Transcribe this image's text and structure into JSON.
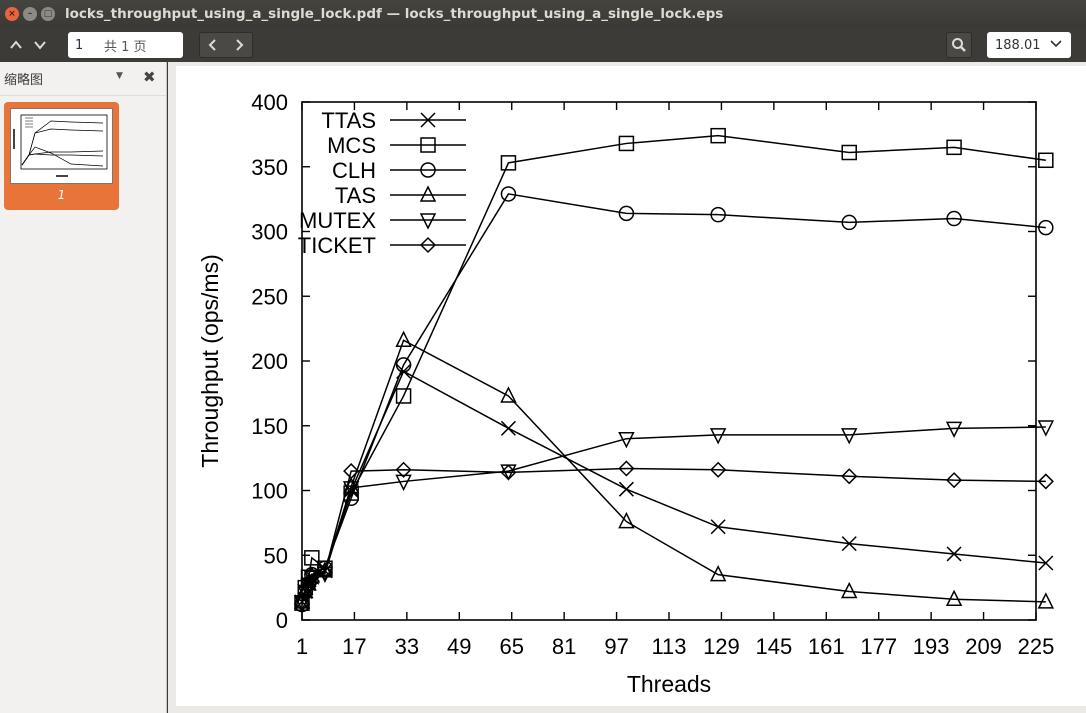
{
  "window": {
    "title": "locks_throughput_using_a_single_lock.pdf — locks_throughput_using_a_single_lock.eps",
    "close_glyph": "×",
    "min_glyph": "–",
    "max_glyph": "□"
  },
  "toolbar": {
    "page_current": "1",
    "page_total": "共 1 页",
    "zoom": "188.01",
    "up_icon": "chevron-up-icon",
    "down_icon": "chevron-down-icon",
    "prev_icon": "chevron-left-icon",
    "next_icon": "chevron-right-icon",
    "search_icon": "search-icon"
  },
  "sidebar": {
    "title": "缩略图",
    "thumbnails": [
      {
        "label": "1"
      }
    ]
  },
  "chart_data": {
    "type": "line",
    "xlabel": "Threads",
    "ylabel": "Throughput (ops/ms)",
    "xticks": [
      "1",
      "17",
      "33",
      "49",
      "65",
      "81",
      "97",
      "113",
      "129",
      "145",
      "161",
      "177",
      "193",
      "209",
      "225"
    ],
    "xlim": [
      1,
      225
    ],
    "yticks": [
      "0",
      "50",
      "100",
      "150",
      "200",
      "250",
      "300",
      "350",
      "400"
    ],
    "ylim": [
      0,
      400
    ],
    "legend_position": "top-left",
    "series": [
      {
        "name": "TTAS",
        "marker": "x",
        "x": [
          1,
          2,
          3,
          4,
          8,
          16,
          32,
          64,
          100,
          128,
          168,
          200,
          228
        ],
        "y": [
          14,
          22,
          28,
          33,
          38,
          100,
          192,
          148,
          101,
          72,
          59,
          51,
          44
        ]
      },
      {
        "name": "MCS",
        "marker": "square",
        "x": [
          1,
          2,
          3,
          4,
          8,
          16,
          32,
          64,
          100,
          128,
          168,
          200,
          228
        ],
        "y": [
          13,
          25,
          33,
          48,
          40,
          98,
          173,
          353,
          368,
          374,
          361,
          365,
          355
        ]
      },
      {
        "name": "CLH",
        "marker": "circle",
        "x": [
          1,
          2,
          3,
          4,
          8,
          16,
          32,
          64,
          100,
          128,
          168,
          200,
          228
        ],
        "y": [
          12,
          22,
          28,
          35,
          40,
          94,
          197,
          329,
          314,
          313,
          307,
          310,
          303
        ]
      },
      {
        "name": "TAS",
        "marker": "triangle-up",
        "x": [
          1,
          2,
          3,
          4,
          8,
          16,
          32,
          64,
          100,
          128,
          168,
          200,
          228
        ],
        "y": [
          14,
          22,
          28,
          34,
          38,
          103,
          216,
          173,
          76,
          35,
          22,
          16,
          14
        ]
      },
      {
        "name": "MUTEX",
        "marker": "triangle-down",
        "x": [
          1,
          2,
          3,
          4,
          8,
          16,
          32,
          64,
          100,
          128,
          168,
          200,
          228
        ],
        "y": [
          14,
          22,
          27,
          33,
          36,
          102,
          107,
          115,
          140,
          143,
          143,
          148,
          149
        ]
      },
      {
        "name": "TICKET",
        "marker": "diamond",
        "x": [
          1,
          2,
          3,
          4,
          8,
          16,
          32,
          64,
          100,
          128,
          168,
          200,
          228
        ],
        "y": [
          13,
          20,
          26,
          30,
          37,
          115,
          116,
          114,
          117,
          116,
          111,
          108,
          107
        ]
      }
    ]
  }
}
